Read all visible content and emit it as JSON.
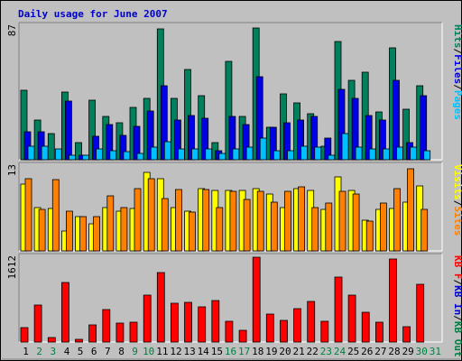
{
  "chart_data": {
    "type": "bar",
    "title": "Daily usage for June 2007",
    "days": [
      "1",
      "2",
      "3",
      "4",
      "5",
      "6",
      "7",
      "8",
      "9",
      "10",
      "11",
      "12",
      "13",
      "14",
      "15",
      "16",
      "17",
      "18",
      "19",
      "20",
      "21",
      "22",
      "23",
      "24",
      "25",
      "26",
      "27",
      "28",
      "29",
      "30",
      "31"
    ],
    "weekend_days": [
      "2",
      "3",
      "9",
      "10",
      "16",
      "17",
      "23",
      "24",
      "30",
      "31"
    ],
    "colors": {
      "title": "#0000cc",
      "background": "#c0c0c0",
      "weekday_label": "#000000",
      "weekend_label": "#008040",
      "hits": "#00805c",
      "files": "#0000e6",
      "pages": "#00c0ff",
      "visits": "#ffff00",
      "sites": "#ff8000",
      "kbin": "#0000cc",
      "kbout": "#008040",
      "kbf": "#ff0000",
      "separator": "#000000"
    },
    "panels": [
      {
        "ymax_label": "87",
        "ymax": 87,
        "right_label": [
          {
            "text": "Hits",
            "color_key": "hits"
          },
          {
            "text": "/",
            "color_key": "separator"
          },
          {
            "text": "Files",
            "color_key": "files"
          },
          {
            "text": "/",
            "color_key": "separator"
          },
          {
            "text": "Pages",
            "color_key": "pages"
          }
        ],
        "series": [
          {
            "name": "Hits",
            "color_key": "hits",
            "values": [
              45,
              26,
              17,
              44,
              11,
              39,
              28,
              24,
              34,
              40,
              85,
              40,
              59,
              42,
              11,
              64,
              28,
              86,
              21,
              43,
              37,
              30,
              9,
              77,
              52,
              57,
              31,
              73,
              33,
              48,
              0
            ]
          },
          {
            "name": "Files",
            "color_key": "files",
            "values": [
              18,
              18,
              0,
              38,
              3,
              15,
              23,
              16,
              22,
              32,
              48,
              26,
              29,
              27,
              6,
              28,
              23,
              54,
              21,
              24,
              26,
              28,
              14,
              46,
              40,
              29,
              26,
              52,
              11,
              42,
              0
            ]
          },
          {
            "name": "Pages",
            "color_key": "pages",
            "values": [
              9,
              9,
              7,
              3,
              3,
              7,
              6,
              5,
              4,
              8,
              12,
              7,
              7,
              7,
              4,
              7,
              8,
              14,
              6,
              6,
              9,
              8,
              3,
              17,
              8,
              7,
              7,
              8,
              8,
              6,
              0
            ]
          }
        ]
      },
      {
        "ymax_label": "13",
        "ymax": 13,
        "right_label": [
          {
            "text": "Visits",
            "color_key": "visits"
          },
          {
            "text": "/",
            "color_key": "separator"
          },
          {
            "text": "Sites",
            "color_key": "sites"
          }
        ],
        "series": [
          {
            "name": "Visits",
            "color_key": "visits",
            "values": [
              10.2,
              6.7,
              6.5,
              3,
              5.2,
              4.2,
              6.6,
              6.1,
              6.5,
              12,
              11,
              6.6,
              6.1,
              9.5,
              9.2,
              9.2,
              9.2,
              9.5,
              8.7,
              6.7,
              9.5,
              9.2,
              6.3,
              11.3,
              9.3,
              4.7,
              6.3,
              6.5,
              7.5,
              10,
              0
            ]
          },
          {
            "name": "Sites",
            "color_key": "sites",
            "values": [
              11,
              6.3,
              10.9,
              6.1,
              5.2,
              5.2,
              8.5,
              6.6,
              9.6,
              11,
              8,
              9.4,
              6,
              9.4,
              6.6,
              9.1,
              7.9,
              9.1,
              7.5,
              9.1,
              9.8,
              6.6,
              7.3,
              9.1,
              8.7,
              4.5,
              7.3,
              9.6,
              12.6,
              6.3,
              0
            ]
          }
        ]
      },
      {
        "ymax_label": "1612",
        "ymax": 1612,
        "right_label": [
          {
            "text": "KB F",
            "color_key": "kbf"
          },
          {
            "text": "/",
            "color_key": "separator"
          },
          {
            "text": "KB In",
            "color_key": "kbin"
          },
          {
            "text": "/",
            "color_key": "separator"
          },
          {
            "text": "KB Out",
            "color_key": "kbout"
          }
        ],
        "series": [
          {
            "name": "KB F",
            "color_key": "kbf",
            "values": [
              280,
              710,
              90,
              1140,
              60,
              330,
              620,
              360,
              370,
              900,
              1320,
              730,
              750,
              670,
              790,
              390,
              220,
              1612,
              540,
              410,
              640,
              780,
              390,
              1240,
              900,
              560,
              370,
              1580,
              300,
              1090,
              0
            ]
          }
        ]
      }
    ]
  }
}
